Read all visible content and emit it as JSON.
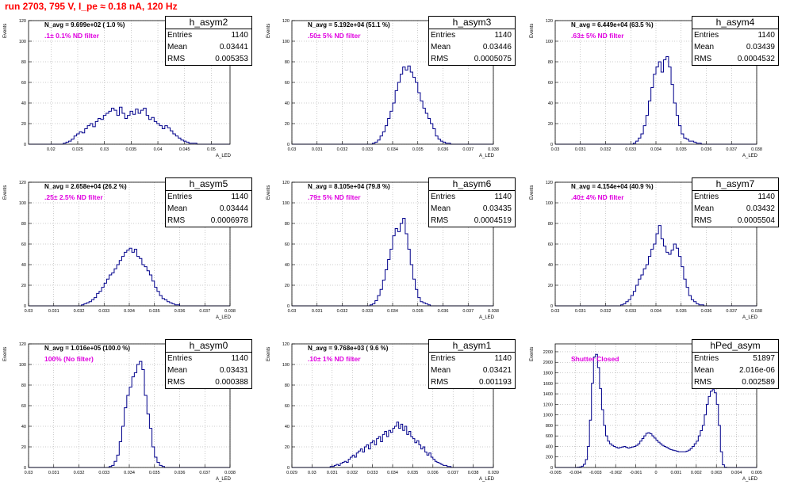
{
  "page_title": "run 2703,   795 V, I_pe ≈ 0.18 nA, 120 Hz",
  "colors": {
    "histogram_line": "#00008b",
    "title_red": "#ff0000",
    "annotation_magenta": "#e000e0",
    "grid": "#999999"
  },
  "chart_data": [
    {
      "type": "bar",
      "name": "h_asym2",
      "ylabel": "Events",
      "xlabel": "A_LED",
      "x_ticks": [
        "0.02",
        "0.025",
        "0.03",
        "0.035",
        "0.04",
        "0.045",
        "0.05"
      ],
      "xlim": [
        0.0158,
        0.0535
      ],
      "y_ticks": [
        "0",
        "20",
        "40",
        "60",
        "80",
        "100",
        "120"
      ],
      "ylim": [
        0,
        120
      ],
      "nav_label": "N_avg = 9.699e+02 ( 1.0 %)",
      "filter_label": ".1± 0.1% ND filter",
      "stats": {
        "title": "h_asym2",
        "rows": [
          [
            "Entries",
            "1140"
          ],
          [
            "Mean",
            "0.03441"
          ],
          [
            "RMS",
            "0.005353"
          ]
        ]
      },
      "bin_edges_start": 0.0158,
      "bin_width": 0.0005,
      "values": [
        0,
        0,
        0,
        0,
        0,
        0,
        0,
        0,
        0,
        0,
        0,
        0,
        0,
        1,
        2,
        3,
        5,
        8,
        10,
        12,
        11,
        15,
        18,
        20,
        17,
        22,
        25,
        24,
        28,
        30,
        32,
        35,
        33,
        28,
        36,
        30,
        25,
        28,
        32,
        29,
        34,
        30,
        33,
        35,
        28,
        24,
        26,
        22,
        20,
        18,
        15,
        18,
        16,
        13,
        10,
        8,
        6,
        4,
        3,
        2,
        1,
        1,
        1,
        0,
        0,
        0,
        0,
        0,
        0,
        0,
        0,
        0,
        0,
        0,
        0
      ]
    },
    {
      "type": "bar",
      "name": "h_asym3",
      "ylabel": "Events",
      "xlabel": "A_LED",
      "x_ticks": [
        "0.03",
        "0.031",
        "0.032",
        "0.033",
        "0.034",
        "0.035",
        "0.036",
        "0.037",
        "0.038"
      ],
      "xlim": [
        0.03,
        0.038
      ],
      "y_ticks": [
        "0",
        "20",
        "40",
        "60",
        "80",
        "100",
        "120"
      ],
      "ylim": [
        0,
        120
      ],
      "nav_label": "N_avg = 5.192e+04 (51.1 %)",
      "filter_label": ".50± 5% ND filter",
      "stats": {
        "title": "h_asym3",
        "rows": [
          [
            "Entries",
            "1140"
          ],
          [
            "Mean",
            "0.03446"
          ],
          [
            "RMS",
            "0.0005075"
          ]
        ]
      },
      "bin_edges_start": 0.03,
      "bin_width": 0.0001,
      "values": [
        0,
        0,
        0,
        0,
        0,
        0,
        0,
        0,
        0,
        0,
        0,
        0,
        0,
        0,
        0,
        0,
        0,
        0,
        0,
        0,
        0,
        0,
        0,
        0,
        0,
        0,
        0,
        0,
        0,
        0,
        0,
        0,
        1,
        2,
        4,
        8,
        12,
        18,
        25,
        32,
        40,
        52,
        60,
        68,
        75,
        72,
        76,
        70,
        65,
        60,
        50,
        42,
        35,
        30,
        25,
        20,
        15,
        8,
        5,
        3,
        2,
        1,
        1,
        0,
        0,
        0,
        0,
        0,
        0,
        0,
        0,
        0,
        0,
        0,
        0,
        0,
        0,
        0,
        0,
        0
      ]
    },
    {
      "type": "bar",
      "name": "h_asym4",
      "ylabel": "Events",
      "xlabel": "A_LED",
      "x_ticks": [
        "0.03",
        "0.031",
        "0.032",
        "0.033",
        "0.034",
        "0.035",
        "0.036",
        "0.037",
        "0.038"
      ],
      "xlim": [
        0.03,
        0.038
      ],
      "y_ticks": [
        "0",
        "20",
        "40",
        "60",
        "80",
        "100",
        "120"
      ],
      "ylim": [
        0,
        120
      ],
      "nav_label": "N_avg = 6.449e+04 (63.5 %)",
      "filter_label": ".63± 5% ND filter",
      "stats": {
        "title": "h_asym4",
        "rows": [
          [
            "Entries",
            "1140"
          ],
          [
            "Mean",
            "0.03439"
          ],
          [
            "RMS",
            "0.0004532"
          ]
        ]
      },
      "bin_edges_start": 0.03,
      "bin_width": 0.0001,
      "values": [
        0,
        0,
        0,
        0,
        0,
        0,
        0,
        0,
        0,
        0,
        0,
        0,
        0,
        0,
        0,
        0,
        0,
        0,
        0,
        0,
        0,
        0,
        0,
        0,
        0,
        0,
        0,
        0,
        0,
        0,
        0,
        1,
        3,
        6,
        10,
        18,
        28,
        42,
        55,
        68,
        75,
        80,
        70,
        82,
        85,
        75,
        58,
        40,
        28,
        18,
        10,
        6,
        5,
        3,
        3,
        2,
        1,
        1,
        0,
        0,
        0,
        0,
        0,
        0,
        0,
        0,
        0,
        0,
        0,
        0,
        0,
        0,
        0,
        0,
        0,
        0
      ]
    },
    {
      "type": "bar",
      "name": "h_asym5",
      "ylabel": "Events",
      "xlabel": "A_LED",
      "x_ticks": [
        "0.03",
        "0.031",
        "0.032",
        "0.033",
        "0.034",
        "0.035",
        "0.036",
        "0.037",
        "0.038"
      ],
      "xlim": [
        0.03,
        0.038
      ],
      "y_ticks": [
        "0",
        "20",
        "40",
        "60",
        "80",
        "100",
        "120"
      ],
      "ylim": [
        0,
        120
      ],
      "nav_label": "N_avg = 2.658e+04 (26.2 %)",
      "filter_label": ".25± 2.5% ND filter",
      "stats": {
        "title": "h_asym5",
        "rows": [
          [
            "Entries",
            "1140"
          ],
          [
            "Mean",
            "0.03444"
          ],
          [
            "RMS",
            "0.0006978"
          ]
        ]
      },
      "bin_edges_start": 0.03,
      "bin_width": 0.0001,
      "values": [
        0,
        0,
        0,
        0,
        0,
        0,
        0,
        0,
        0,
        0,
        0,
        0,
        0,
        0,
        0,
        0,
        0,
        0,
        0,
        0,
        0,
        1,
        2,
        3,
        4,
        6,
        8,
        12,
        14,
        18,
        22,
        26,
        30,
        32,
        36,
        40,
        44,
        48,
        52,
        54,
        56,
        52,
        55,
        48,
        46,
        40,
        38,
        34,
        30,
        24,
        18,
        14,
        10,
        7,
        6,
        4,
        3,
        2,
        1,
        1,
        0,
        0,
        0,
        0,
        0,
        0,
        0,
        0,
        0,
        0,
        0,
        0,
        0,
        0,
        0,
        0,
        0,
        0,
        0,
        0
      ]
    },
    {
      "type": "bar",
      "name": "h_asym6",
      "ylabel": "Events",
      "xlabel": "A_LED",
      "x_ticks": [
        "0.03",
        "0.031",
        "0.032",
        "0.033",
        "0.034",
        "0.035",
        "0.036",
        "0.037",
        "0.038"
      ],
      "xlim": [
        0.03,
        0.038
      ],
      "y_ticks": [
        "0",
        "20",
        "40",
        "60",
        "80",
        "100",
        "120"
      ],
      "ylim": [
        0,
        120
      ],
      "nav_label": "N_avg = 8.105e+04 (79.8 %)",
      "filter_label": ".79± 5% ND filter",
      "stats": {
        "title": "h_asym6",
        "rows": [
          [
            "Entries",
            "1140"
          ],
          [
            "Mean",
            "0.03435"
          ],
          [
            "RMS",
            "0.0004519"
          ]
        ]
      },
      "bin_edges_start": 0.03,
      "bin_width": 0.0001,
      "values": [
        0,
        0,
        0,
        0,
        0,
        0,
        0,
        0,
        0,
        0,
        0,
        0,
        0,
        0,
        0,
        0,
        0,
        0,
        0,
        0,
        0,
        0,
        0,
        0,
        0,
        0,
        0,
        0,
        0,
        0,
        0,
        1,
        2,
        5,
        10,
        16,
        25,
        35,
        45,
        55,
        68,
        75,
        72,
        80,
        85,
        70,
        55,
        40,
        26,
        16,
        8,
        4,
        3,
        2,
        1,
        0,
        0,
        0,
        0,
        0,
        0,
        0,
        0,
        0,
        0,
        0,
        0,
        0,
        0,
        0,
        0,
        0,
        0,
        0,
        0,
        0,
        0,
        0,
        0,
        0
      ]
    },
    {
      "type": "bar",
      "name": "h_asym7",
      "ylabel": "Events",
      "xlabel": "A_LED",
      "x_ticks": [
        "0.03",
        "0.031",
        "0.032",
        "0.033",
        "0.034",
        "0.035",
        "0.036",
        "0.037",
        "0.038"
      ],
      "xlim": [
        0.03,
        0.038
      ],
      "y_ticks": [
        "0",
        "20",
        "40",
        "60",
        "80",
        "100",
        "120"
      ],
      "ylim": [
        0,
        120
      ],
      "nav_label": "N_avg = 4.154e+04 (40.9 %)",
      "filter_label": ".40± 4% ND filter",
      "stats": {
        "title": "h_asym7",
        "rows": [
          [
            "Entries",
            "1140"
          ],
          [
            "Mean",
            "0.03432"
          ],
          [
            "RMS",
            "0.0005504"
          ]
        ]
      },
      "bin_edges_start": 0.03,
      "bin_width": 0.0001,
      "values": [
        0,
        0,
        0,
        0,
        0,
        0,
        0,
        0,
        0,
        0,
        0,
        0,
        0,
        0,
        0,
        0,
        0,
        0,
        0,
        0,
        0,
        0,
        0,
        0,
        0,
        0,
        1,
        2,
        4,
        6,
        10,
        14,
        20,
        26,
        30,
        36,
        40,
        48,
        55,
        60,
        70,
        78,
        65,
        58,
        52,
        50,
        54,
        60,
        56,
        48,
        38,
        26,
        18,
        10,
        6,
        4,
        2,
        1,
        1,
        0,
        0,
        0,
        0,
        0,
        0,
        0,
        0,
        0,
        0,
        0,
        0,
        0,
        0,
        0,
        0,
        0,
        0,
        0,
        0,
        0
      ]
    },
    {
      "type": "bar",
      "name": "h_asym0",
      "ylabel": "Events",
      "xlabel": "A_LED",
      "x_ticks": [
        "0.03",
        "0.031",
        "0.032",
        "0.033",
        "0.034",
        "0.035",
        "0.036",
        "0.037",
        "0.038"
      ],
      "xlim": [
        0.03,
        0.038
      ],
      "y_ticks": [
        "0",
        "20",
        "40",
        "60",
        "80",
        "100",
        "120"
      ],
      "ylim": [
        0,
        120
      ],
      "nav_label": "N_avg = 1.016e+05 (100.0 %)",
      "filter_label": "100% (No filter)",
      "stats": {
        "title": "h_asym0",
        "rows": [
          [
            "Entries",
            "1140"
          ],
          [
            "Mean",
            "0.03431"
          ],
          [
            "RMS",
            "0.000388"
          ]
        ]
      },
      "bin_edges_start": 0.03,
      "bin_width": 0.0001,
      "values": [
        0,
        0,
        0,
        0,
        0,
        0,
        0,
        0,
        0,
        0,
        0,
        0,
        0,
        0,
        0,
        0,
        0,
        0,
        0,
        0,
        0,
        0,
        0,
        0,
        0,
        0,
        0,
        0,
        0,
        0,
        0,
        0,
        1,
        2,
        6,
        12,
        25,
        40,
        58,
        70,
        78,
        88,
        92,
        100,
        103,
        95,
        70,
        52,
        38,
        20,
        10,
        5,
        2,
        1,
        0,
        0,
        0,
        0,
        0,
        0,
        0,
        0,
        0,
        0,
        0,
        0,
        0,
        0,
        0,
        0,
        0,
        0,
        0,
        0,
        0,
        0,
        0,
        0,
        0,
        0
      ]
    },
    {
      "type": "bar",
      "name": "h_asym1",
      "ylabel": "Events",
      "xlabel": "A_LED",
      "x_ticks": [
        "0.029",
        "0.03",
        "0.031",
        "0.032",
        "0.033",
        "0.034",
        "0.035",
        "0.036",
        "0.037",
        "0.038",
        "0.039"
      ],
      "xlim": [
        0.029,
        0.039
      ],
      "y_ticks": [
        "0",
        "20",
        "40",
        "60",
        "80",
        "100",
        "120"
      ],
      "ylim": [
        0,
        120
      ],
      "nav_label": "N_avg = 9.768e+03 ( 9.6 %)",
      "filter_label": ".10± 1% ND filter",
      "stats": {
        "title": "h_asym1",
        "rows": [
          [
            "Entries",
            "1140"
          ],
          [
            "Mean",
            "0.03421"
          ],
          [
            "RMS",
            "0.001193"
          ]
        ]
      },
      "bin_edges_start": 0.029,
      "bin_width": 0.0001,
      "values": [
        0,
        0,
        0,
        0,
        0,
        0,
        0,
        0,
        0,
        0,
        0,
        0,
        0,
        0,
        0,
        0,
        0,
        0,
        0,
        1,
        1,
        2,
        3,
        2,
        4,
        5,
        6,
        5,
        8,
        10,
        12,
        10,
        14,
        16,
        18,
        15,
        20,
        22,
        18,
        24,
        26,
        22,
        28,
        30,
        25,
        32,
        35,
        30,
        36,
        34,
        38,
        40,
        44,
        38,
        42,
        36,
        40,
        32,
        35,
        30,
        28,
        24,
        26,
        22,
        18,
        20,
        15,
        12,
        14,
        10,
        8,
        6,
        5,
        4,
        3,
        2,
        2,
        1,
        1,
        0,
        0,
        0,
        0,
        0,
        0,
        0,
        0,
        0,
        0,
        0,
        0,
        0,
        0,
        0,
        0,
        0,
        0,
        0,
        0,
        0
      ]
    },
    {
      "type": "bar",
      "name": "hPed_asym",
      "ylabel": "Events",
      "xlabel": "A_LED",
      "x_ticks": [
        "-0.005",
        "-0.004",
        "-0.003",
        "-0.002",
        "-0.001",
        "0",
        "0.001",
        "0.002",
        "0.003",
        "0.004",
        "0.005"
      ],
      "xlim": [
        -0.005,
        0.005
      ],
      "y_ticks": [
        "0",
        "200",
        "400",
        "600",
        "800",
        "1000",
        "1200",
        "1400",
        "1600",
        "1800",
        "2000",
        "2200"
      ],
      "ylim": [
        0,
        2350
      ],
      "nav_label": "",
      "filter_label": "Shutter Closed",
      "stats": {
        "title": "hPed_asym",
        "rows": [
          [
            "Entries",
            "51897"
          ],
          [
            "Mean",
            "2.016e-06"
          ],
          [
            "RMS",
            "0.002589"
          ]
        ]
      },
      "bin_edges_start": -0.005,
      "bin_width": 0.0001,
      "values": [
        0,
        0,
        0,
        0,
        0,
        0,
        0,
        0,
        0,
        0,
        2,
        5,
        10,
        25,
        60,
        150,
        400,
        900,
        1600,
        2100,
        2150,
        1900,
        1500,
        1100,
        800,
        600,
        500,
        450,
        420,
        400,
        380,
        370,
        380,
        390,
        400,
        380,
        370,
        380,
        390,
        400,
        420,
        450,
        500,
        550,
        600,
        650,
        660,
        640,
        600,
        560,
        520,
        480,
        450,
        420,
        400,
        380,
        360,
        340,
        330,
        320,
        310,
        300,
        300,
        300,
        300,
        310,
        330,
        360,
        400,
        450,
        500,
        600,
        700,
        800,
        1000,
        1200,
        1350,
        1450,
        1480,
        1420,
        1200,
        800,
        300,
        50,
        5,
        0,
        0,
        0,
        0,
        0,
        0,
        0,
        0,
        0,
        0,
        0,
        0,
        0,
        0,
        0
      ]
    }
  ]
}
